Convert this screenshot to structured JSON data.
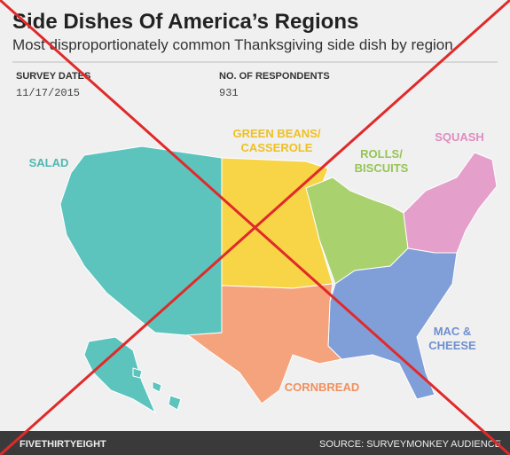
{
  "header": {
    "title": "Side Dishes Of America’s Regions",
    "subtitle": "Most disproportionately common Thanksgiving side dish by region"
  },
  "meta": [
    {
      "label": "SURVEY DATES",
      "value": "11/17/2015"
    },
    {
      "label": "NO. OF RESPONDENTS",
      "value": "931"
    }
  ],
  "regions": [
    {
      "label": [
        "SALAD"
      ],
      "color": "#5cc4bd",
      "text_color": "#4fb8b1"
    },
    {
      "label": [
        "GREEN BEANS/",
        "CASSEROLE"
      ],
      "color": "#f8d447",
      "text_color": "#f0c020"
    },
    {
      "label": [
        "ROLLS/",
        "BISCUITS"
      ],
      "color": "#a9d26e",
      "text_color": "#95c455"
    },
    {
      "label": [
        "SQUASH"
      ],
      "color": "#e59fcb",
      "text_color": "#e08cc0"
    },
    {
      "label": [
        "MAC &",
        "CHEESE"
      ],
      "color": "#809fd8",
      "text_color": "#6f8fd0"
    },
    {
      "label": [
        "CORNBREAD"
      ],
      "color": "#f4a37c",
      "text_color": "#f0905f"
    }
  ],
  "footer": {
    "brand": "FIVETHIRTYEIGHT",
    "source": "SOURCE: SURVEYMONKEY AUDIENCE"
  }
}
